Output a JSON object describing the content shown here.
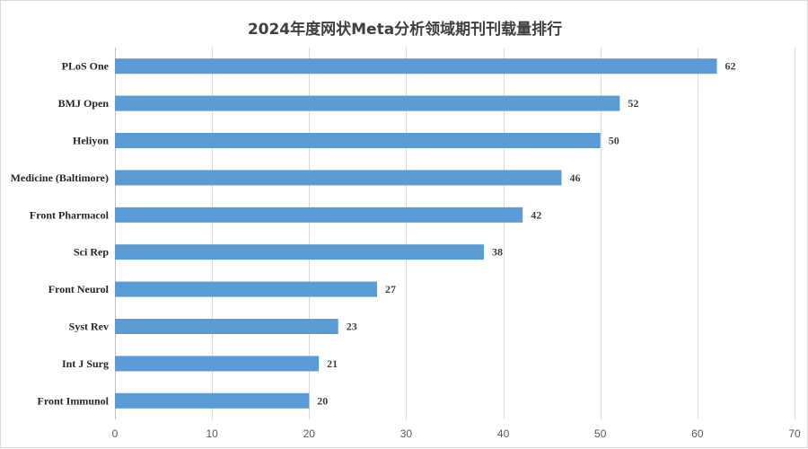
{
  "chart_data": {
    "type": "bar",
    "orientation": "horizontal",
    "title": "2024年度网状Meta分析领域期刊刊载量排行",
    "categories": [
      "PLoS One",
      "BMJ Open",
      "Heliyon",
      "Medicine (Baltimore)",
      "Front Pharmacol",
      "Sci Rep",
      "Front Neurol",
      "Syst Rev",
      "Int J Surg",
      "Front Immunol"
    ],
    "values": [
      62,
      52,
      50,
      46,
      42,
      38,
      27,
      23,
      21,
      20
    ],
    "xlim": [
      0,
      70
    ],
    "xticks": [
      0,
      10,
      20,
      30,
      40,
      50,
      60,
      70
    ],
    "grid": true,
    "bar_color": "#5b9bd5",
    "data_labels": true
  }
}
